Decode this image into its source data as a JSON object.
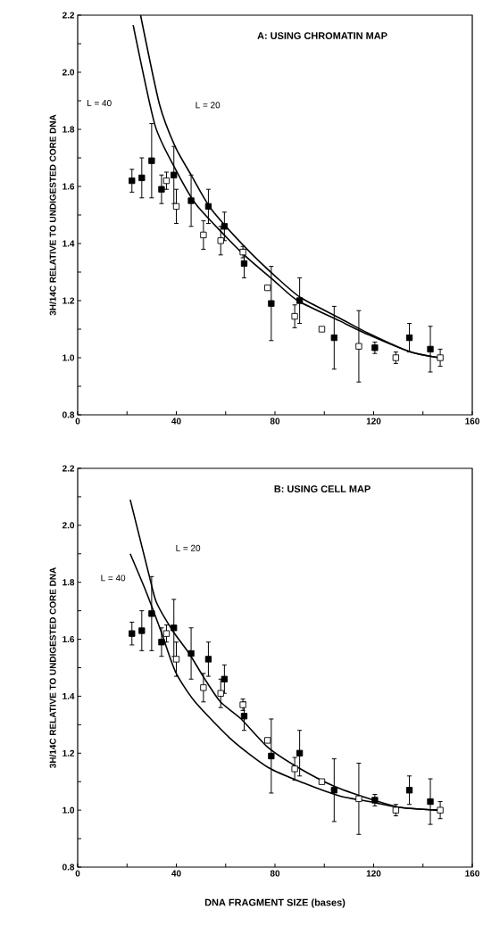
{
  "chart_data": [
    {
      "type": "scatter",
      "title": "A:  USING CHROMATIN MAP",
      "ylabel": "3H/14C RELATIVE TO UNDIGESTED CORE DNA",
      "xlim": [
        0,
        160
      ],
      "ylim": [
        0.8,
        2.2
      ],
      "xticks": [
        0,
        {
          "value": 20,
          "label": null
        },
        40,
        {
          "value": 60,
          "label": null
        },
        80,
        {
          "value": 100,
          "label": null
        },
        120,
        {
          "value": 140,
          "label": null
        },
        160
      ],
      "yticks": [
        0.8,
        {
          "value": 0.9,
          "label": null
        },
        {
          "value": 1,
          "label": "1.0"
        },
        {
          "value": 1.1,
          "label": null
        },
        1.2,
        {
          "value": 1.3,
          "label": null
        },
        1.4,
        {
          "value": 1.5,
          "label": null
        },
        1.6,
        {
          "value": 1.7,
          "label": null
        },
        1.8,
        {
          "value": 1.9,
          "label": null
        },
        {
          "value": 2,
          "label": "2.0"
        },
        {
          "value": 2.1,
          "label": null
        },
        2.2
      ],
      "grid": false,
      "annotations": [
        "L = 40",
        "L = 20"
      ],
      "series": [
        {
          "type": "line",
          "marker": "none",
          "color": "#000000",
          "x": [
            22.5,
            31.3,
            39.1,
            48.2,
            66.3,
            79.6,
            89.2,
            106,
            118,
            135,
            146.6
          ],
          "values": [
            2.165,
            1.816,
            1.67,
            1.535,
            1.37,
            1.27,
            1.2,
            1.13,
            1.08,
            1.02,
            1.0
          ]
        },
        {
          "type": "line",
          "marker": "none",
          "color": "#000000",
          "x": [
            25.5,
            33.1,
            39.5,
            46,
            54.2,
            68.7,
            80.8,
            90.5,
            106,
            118,
            135,
            146.6
          ],
          "values": [
            2.2,
            1.89,
            1.74,
            1.64,
            1.52,
            1.38,
            1.28,
            1.21,
            1.14,
            1.085,
            1.02,
            1.0
          ]
        },
        {
          "marker": "square",
          "color": "#000000",
          "x": [
            22,
            26,
            30,
            34,
            39,
            46,
            53,
            59.5,
            67.5,
            78.5,
            90,
            104,
            120.5,
            134.5,
            143
          ],
          "values": [
            1.62,
            1.63,
            1.69,
            1.59,
            1.64,
            1.55,
            1.53,
            1.46,
            1.33,
            1.19,
            1.2,
            1.07,
            1.035,
            1.07,
            1.03
          ],
          "errors": [
            0.04,
            0.07,
            0.13,
            0.05,
            0.1,
            0.09,
            0.06,
            0.05,
            0.05,
            0.13,
            0.08,
            0.11,
            0.02,
            0.05,
            0.08
          ]
        },
        {
          "marker": "square",
          "color": "#ffffff",
          "x": [
            36,
            40,
            51,
            58,
            67,
            77,
            88,
            99,
            114,
            129,
            147
          ],
          "values": [
            1.62,
            1.53,
            1.43,
            1.41,
            1.37,
            1.245,
            1.145,
            1.1,
            1.04,
            1.0,
            1.0
          ],
          "errors": [
            0.03,
            0.06,
            0.05,
            0.05,
            0.02,
            null,
            0.04,
            null,
            0.125,
            0.02,
            0.03
          ]
        }
      ]
    },
    {
      "type": "scatter",
      "title": "B:  USING CELL MAP",
      "ylabel": "3H/14C RELATIVE TO UNDIGESTED CORE DNA",
      "xlabel": "DNA FRAGMENT SIZE     (bases)",
      "xlim": [
        0,
        160
      ],
      "ylim": [
        0.8,
        2.2
      ],
      "xticks": [
        0,
        {
          "value": 20,
          "label": null
        },
        40,
        {
          "value": 60,
          "label": null
        },
        80,
        {
          "value": 100,
          "label": null
        },
        120,
        {
          "value": 140,
          "label": null
        },
        160
      ],
      "yticks": [
        0.8,
        {
          "value": 0.9,
          "label": null
        },
        {
          "value": 1,
          "label": "1.0"
        },
        {
          "value": 1.1,
          "label": null
        },
        1.2,
        {
          "value": 1.3,
          "label": null
        },
        1.4,
        {
          "value": 1.5,
          "label": null
        },
        1.6,
        {
          "value": 1.7,
          "label": null
        },
        1.8,
        {
          "value": 1.9,
          "label": null
        },
        {
          "value": 2,
          "label": "2.0"
        },
        {
          "value": 2.1,
          "label": null
        },
        2.2
      ],
      "grid": false,
      "annotations": [
        "L = 20",
        "L = 40"
      ],
      "series": [
        {
          "type": "line",
          "marker": "none",
          "color": "#000000",
          "x": [
            21.3,
            29.1,
            31.9,
            38.5,
            45.2,
            51.2,
            57.9,
            66.3,
            77.2,
            89.3,
            103.7,
            118.2,
            130.3,
            146
          ],
          "values": [
            2.09,
            1.82,
            1.73,
            1.63,
            1.55,
            1.465,
            1.38,
            1.32,
            1.22,
            1.15,
            1.085,
            1.04,
            1.01,
            1.0
          ]
        },
        {
          "type": "line",
          "marker": "none",
          "color": "#000000",
          "x": [
            21.3,
            27.6,
            33.7,
            39.7,
            47.6,
            62.7,
            77.2,
            91.7,
            106.2,
            118.2,
            130.3,
            146
          ],
          "values": [
            1.9,
            1.77,
            1.63,
            1.485,
            1.38,
            1.245,
            1.15,
            1.095,
            1.05,
            1.03,
            1.01,
            1.0
          ]
        },
        {
          "marker": "square",
          "color": "#000000",
          "x": [
            22,
            26,
            30,
            34,
            39,
            46,
            53,
            59.5,
            67.5,
            78.5,
            90,
            104,
            120.5,
            134.5,
            143
          ],
          "values": [
            1.62,
            1.63,
            1.69,
            1.59,
            1.64,
            1.55,
            1.53,
            1.46,
            1.33,
            1.19,
            1.2,
            1.07,
            1.035,
            1.07,
            1.03
          ],
          "errors": [
            0.04,
            0.07,
            0.13,
            0.05,
            0.1,
            0.09,
            0.06,
            0.05,
            0.05,
            0.13,
            0.08,
            0.11,
            0.02,
            0.05,
            0.08
          ]
        },
        {
          "marker": "square",
          "color": "#ffffff",
          "x": [
            36,
            40,
            51,
            58,
            67,
            77,
            88,
            99,
            114,
            129,
            147
          ],
          "values": [
            1.62,
            1.53,
            1.43,
            1.41,
            1.37,
            1.245,
            1.145,
            1.1,
            1.04,
            1.0,
            1.0
          ],
          "errors": [
            0.03,
            0.06,
            0.05,
            0.05,
            0.02,
            null,
            0.04,
            null,
            0.125,
            0.02,
            0.03
          ]
        }
      ]
    }
  ]
}
